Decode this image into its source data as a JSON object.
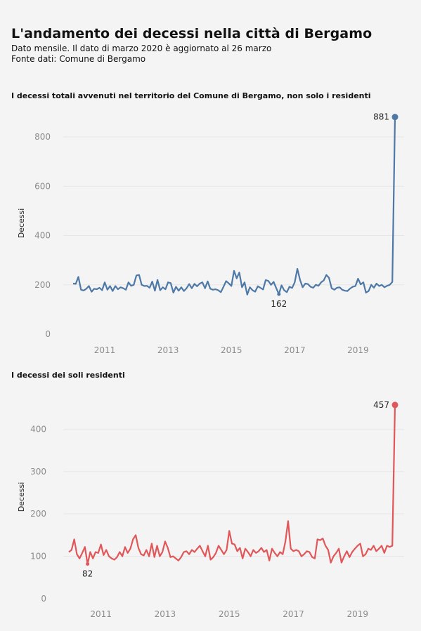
{
  "header": {
    "title": "L'andamento dei decessi nella città di Bergamo",
    "subtitle": "Dato mensile. Il dato di marzo 2020 è aggiornato al 26 marzo",
    "source": "Fonte dati: Comune di Bergamo"
  },
  "chart_data": [
    {
      "type": "line",
      "title": "I decessi totali avvenuti nel territorio del Comune di Bergamo, non solo i residenti",
      "xlabel": "",
      "ylabel": "Decessi",
      "x_start": "2010-01",
      "xlim": [
        "2010-01",
        "2020-03"
      ],
      "ylim": [
        0,
        900
      ],
      "yticks": [
        0,
        200,
        400,
        600,
        800
      ],
      "xticks": [
        "2011",
        "2013",
        "2015",
        "2017",
        "2019"
      ],
      "color": "#4e79a7",
      "grid": true,
      "annotations": [
        {
          "x": "2016-07",
          "y": 162,
          "label": "162"
        },
        {
          "x": "2020-03",
          "y": 881,
          "label": "881"
        }
      ],
      "values": [
        205,
        204,
        232,
        180,
        177,
        184,
        195,
        172,
        184,
        182,
        188,
        178,
        210,
        180,
        195,
        175,
        195,
        182,
        190,
        186,
        180,
        210,
        196,
        200,
        238,
        240,
        200,
        195,
        196,
        188,
        213,
        176,
        220,
        178,
        190,
        182,
        210,
        207,
        168,
        192,
        176,
        190,
        175,
        186,
        203,
        186,
        204,
        194,
        205,
        210,
        186,
        214,
        184,
        180,
        182,
        178,
        170,
        192,
        215,
        206,
        195,
        257,
        226,
        250,
        190,
        210,
        160,
        190,
        178,
        172,
        194,
        188,
        181,
        219,
        216,
        200,
        212,
        186,
        162,
        198,
        178,
        170,
        192,
        187,
        210,
        265,
        220,
        190,
        205,
        203,
        192,
        188,
        200,
        196,
        210,
        218,
        240,
        228,
        186,
        180,
        188,
        190,
        180,
        176,
        175,
        185,
        192,
        195,
        225,
        202,
        210,
        168,
        175,
        200,
        188,
        205,
        195,
        200,
        190,
        196,
        200,
        212,
        881
      ]
    },
    {
      "type": "line",
      "title": "I decessi dei soli residenti",
      "xlabel": "",
      "ylabel": "Decessi",
      "x_start": "2010-01",
      "xlim": [
        "2010-01",
        "2020-03"
      ],
      "ylim": [
        0,
        480
      ],
      "yticks": [
        0,
        100,
        200,
        300,
        400
      ],
      "xticks": [
        "2011",
        "2013",
        "2015",
        "2017",
        "2019"
      ],
      "color": "#e15759",
      "grid": true,
      "annotations": [
        {
          "x": "2010-08",
          "y": 82,
          "label": "82"
        },
        {
          "x": "2020-03",
          "y": 457,
          "label": "457"
        }
      ],
      "values": [
        110,
        115,
        140,
        105,
        95,
        108,
        122,
        82,
        110,
        95,
        110,
        108,
        128,
        103,
        115,
        100,
        95,
        92,
        98,
        110,
        100,
        122,
        108,
        118,
        140,
        150,
        120,
        105,
        102,
        115,
        100,
        130,
        98,
        125,
        100,
        110,
        135,
        120,
        98,
        100,
        95,
        90,
        98,
        110,
        112,
        105,
        115,
        110,
        118,
        125,
        112,
        100,
        125,
        92,
        98,
        108,
        125,
        115,
        105,
        115,
        160,
        130,
        128,
        112,
        120,
        95,
        118,
        110,
        100,
        115,
        108,
        112,
        120,
        110,
        115,
        90,
        118,
        108,
        100,
        110,
        105,
        135,
        183,
        118,
        112,
        115,
        112,
        100,
        105,
        112,
        110,
        98,
        95,
        140,
        138,
        142,
        125,
        115,
        85,
        100,
        108,
        118,
        85,
        100,
        112,
        98,
        110,
        118,
        125,
        130,
        100,
        105,
        118,
        115,
        125,
        112,
        118,
        125,
        108,
        125,
        122,
        125,
        457
      ]
    }
  ]
}
